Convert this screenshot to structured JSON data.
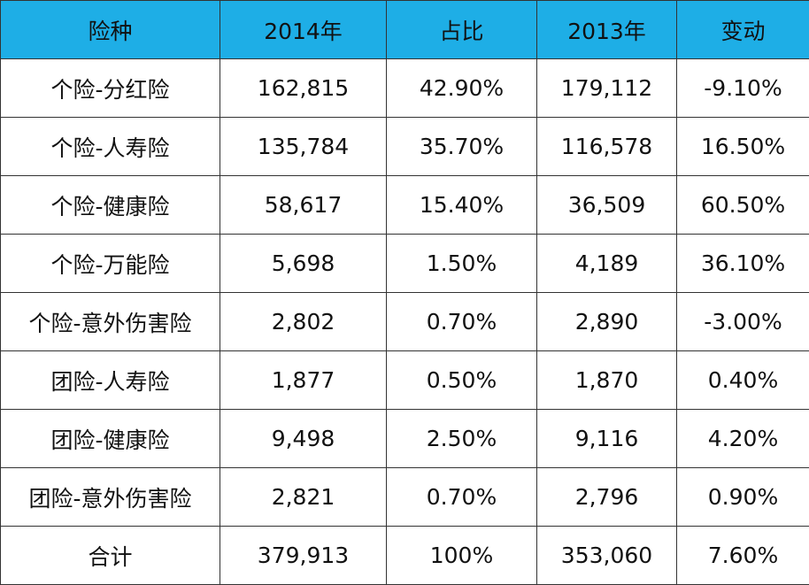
{
  "table": {
    "header": [
      "险种",
      "2014年",
      "占比",
      "2013年",
      "变动"
    ],
    "rows": [
      [
        "个险-分红险",
        "162,815",
        "42.90%",
        "179,112",
        "-9.10%"
      ],
      [
        "个险-人寿险",
        "135,784",
        "35.70%",
        "116,578",
        "16.50%"
      ],
      [
        "个险-健康险",
        "58,617",
        "15.40%",
        "36,509",
        "60.50%"
      ],
      [
        "个险-万能险",
        "5,698",
        "1.50%",
        "4,189",
        "36.10%"
      ],
      [
        "个险-意外伤害险",
        "2,802",
        "0.70%",
        "2,890",
        "-3.00%"
      ],
      [
        "团险-人寿险",
        "1,877",
        "0.50%",
        "1,870",
        "0.40%"
      ],
      [
        "团险-健康险",
        "9,498",
        "2.50%",
        "9,116",
        "4.20%"
      ],
      [
        "团险-意外伤害险",
        "2,821",
        "0.70%",
        "2,796",
        "0.90%"
      ],
      [
        "合计",
        "379,913",
        "100%",
        "353,060",
        "7.60%"
      ]
    ]
  }
}
